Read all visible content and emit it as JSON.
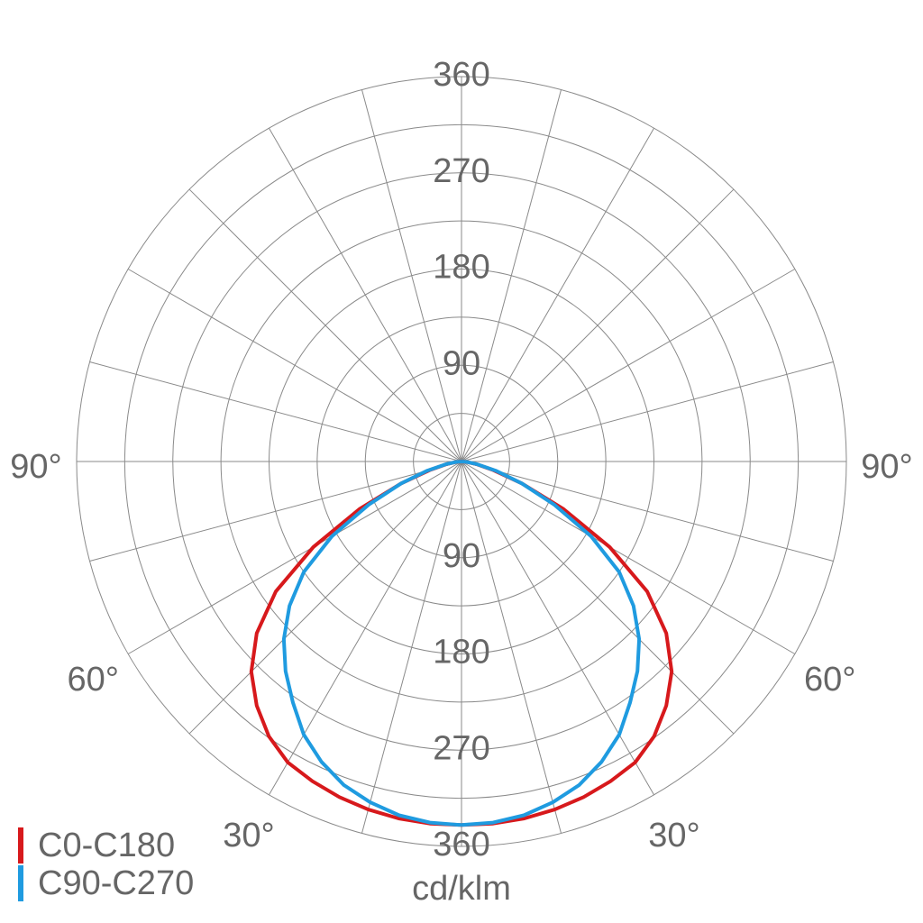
{
  "chart_data": {
    "type": "polar",
    "theta": [
      0,
      5,
      10,
      15,
      20,
      25,
      30,
      35,
      40,
      45,
      50,
      55,
      60,
      65,
      70,
      75,
      80,
      85,
      90
    ],
    "series": [
      {
        "name": "C0-C180",
        "color": "#d7191c",
        "values": [
          340,
          340,
          339,
          337,
          334,
          330,
          325,
          314,
          298,
          278,
          250,
          212,
          160,
          105,
          60,
          30,
          14,
          5,
          0
        ]
      },
      {
        "name": "C90-C270",
        "color": "#1f9be0",
        "values": [
          340,
          339,
          336,
          330,
          322,
          310,
          295,
          275,
          256,
          235,
          210,
          180,
          140,
          96,
          60,
          33,
          15,
          5,
          0
        ]
      }
    ],
    "rlim": [
      0,
      360
    ],
    "rgrid": [
      45,
      90,
      135,
      180,
      225,
      270,
      315,
      360
    ],
    "rticks": [
      90,
      180,
      270,
      360
    ],
    "thetagrid": [
      0,
      15,
      30,
      45,
      60,
      75,
      90
    ],
    "thetaticks": [
      {
        "value": 30,
        "label": "30°"
      },
      {
        "value": 60,
        "label": "60°"
      },
      {
        "value": 90,
        "label": "90°"
      }
    ],
    "unit": "cd/klm"
  }
}
